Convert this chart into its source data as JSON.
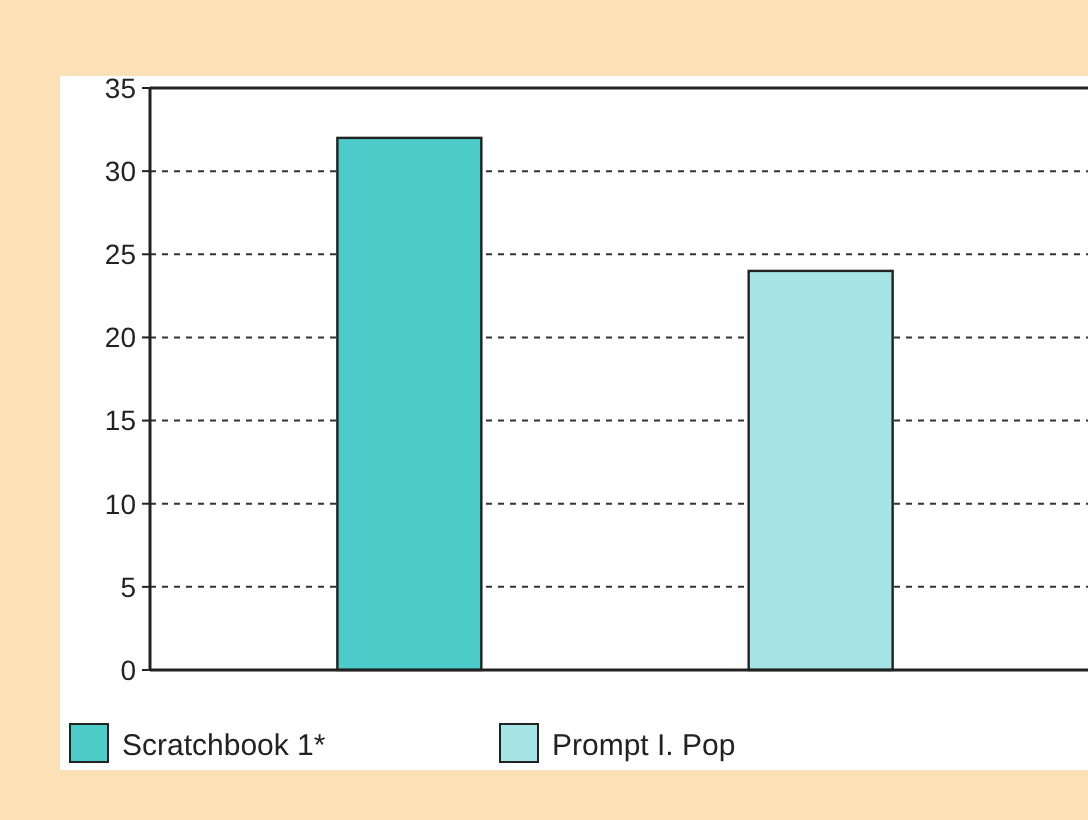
{
  "chart_data": {
    "type": "bar",
    "categories": [
      null
    ],
    "series": [
      {
        "name": "Scratchbook 1*",
        "color": "#4ccbc8",
        "values": [
          32
        ]
      },
      {
        "name": "Prompt I. Pop",
        "color": "#a6e5e5",
        "values": [
          24
        ]
      }
    ],
    "ylim": [
      0,
      35
    ],
    "yticks": [
      0,
      5,
      10,
      15,
      20,
      25,
      30,
      35
    ],
    "grid": "y",
    "legend": "bottom"
  }
}
